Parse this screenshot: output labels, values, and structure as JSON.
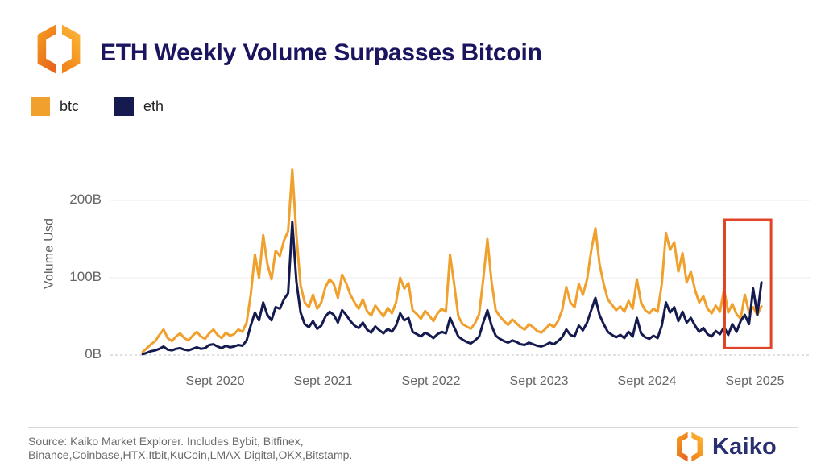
{
  "header": {
    "title": "ETH Weekly Volume Surpasses Bitcoin"
  },
  "legend": [
    {
      "label": "btc",
      "color": "#F0A02D"
    },
    {
      "label": "eth",
      "color": "#151B4F"
    }
  ],
  "colors": {
    "title": "#1B1560",
    "btc_line": "#F0A02D",
    "eth_line": "#151B4F",
    "grid_solid": "#ececec",
    "grid_dashed": "#c2c2c2",
    "highlight_box": "#E04327",
    "brand_navy": "#283070"
  },
  "chart_data": {
    "type": "line",
    "title": "ETH Weekly Volume Surpasses Bitcoin",
    "xlabel": "",
    "ylabel": "Volume Usd",
    "ylim": [
      0,
      258
    ],
    "grid": "horizontal-only",
    "legend_position": "top-left",
    "y_ticks": [
      {
        "label": "0B",
        "v": 0
      },
      {
        "label": "100B",
        "v": 100
      },
      {
        "label": "200B",
        "v": 200
      }
    ],
    "x_ticks": [
      {
        "label": "Sept 2020",
        "t": 2020.67
      },
      {
        "label": "Sept 2021",
        "t": 2021.67
      },
      {
        "label": "Sept 2022",
        "t": 2022.67
      },
      {
        "label": "Sept 2023",
        "t": 2023.67
      },
      {
        "label": "Sept 2024",
        "t": 2024.67
      },
      {
        "label": "Sept 2025",
        "t": 2025.67
      }
    ],
    "x_unit": "decimal-year, weekly volume in billions USD",
    "x_start": 2020.0,
    "x_step": 0.03846,
    "series": [
      {
        "name": "btc",
        "color": "#F0A02D",
        "values": [
          4,
          9,
          14,
          18,
          26,
          33,
          22,
          18,
          24,
          28,
          22,
          19,
          25,
          30,
          24,
          21,
          28,
          33,
          26,
          22,
          29,
          25,
          27,
          33,
          30,
          42,
          78,
          130,
          100,
          155,
          118,
          98,
          135,
          128,
          148,
          160,
          240,
          155,
          90,
          68,
          62,
          78,
          60,
          68,
          88,
          98,
          92,
          74,
          104,
          93,
          78,
          68,
          60,
          72,
          57,
          51,
          64,
          57,
          50,
          61,
          54,
          68,
          100,
          86,
          93,
          58,
          53,
          47,
          57,
          51,
          44,
          54,
          60,
          56,
          130,
          92,
          50,
          40,
          37,
          34,
          41,
          53,
          98,
          150,
          95,
          58,
          50,
          44,
          39,
          46,
          41,
          36,
          33,
          40,
          36,
          31,
          29,
          34,
          40,
          36,
          44,
          58,
          88,
          68,
          62,
          92,
          78,
          98,
          135,
          164,
          118,
          92,
          72,
          65,
          58,
          63,
          56,
          70,
          60,
          98,
          68,
          58,
          54,
          60,
          56,
          92,
          158,
          136,
          146,
          108,
          132,
          94,
          108,
          84,
          68,
          76,
          60,
          54,
          64,
          56,
          85,
          55,
          66,
          53,
          47,
          78,
          55,
          62,
          52,
          63
        ]
      },
      {
        "name": "eth",
        "color": "#151B4F",
        "values": [
          1,
          3,
          5,
          6,
          8,
          11,
          7,
          6,
          8,
          9,
          7,
          6,
          8,
          10,
          8,
          9,
          13,
          14,
          11,
          9,
          12,
          10,
          11,
          13,
          12,
          19,
          38,
          55,
          45,
          68,
          52,
          45,
          62,
          60,
          72,
          80,
          172,
          95,
          55,
          40,
          36,
          44,
          34,
          38,
          50,
          56,
          52,
          42,
          58,
          52,
          44,
          38,
          35,
          42,
          33,
          29,
          37,
          32,
          28,
          34,
          30,
          38,
          54,
          45,
          48,
          30,
          27,
          24,
          29,
          26,
          22,
          27,
          30,
          28,
          48,
          36,
          24,
          20,
          17,
          15,
          19,
          24,
          42,
          58,
          38,
          25,
          21,
          18,
          16,
          19,
          17,
          14,
          13,
          16,
          14,
          12,
          11,
          13,
          16,
          14,
          18,
          23,
          33,
          26,
          24,
          38,
          32,
          42,
          58,
          74,
          52,
          40,
          30,
          26,
          23,
          26,
          22,
          30,
          24,
          48,
          28,
          23,
          21,
          25,
          22,
          38,
          68,
          55,
          62,
          44,
          56,
          42,
          48,
          38,
          30,
          35,
          27,
          24,
          31,
          27,
          36,
          26,
          40,
          30,
          44,
          52,
          40,
          86,
          52,
          94
        ]
      }
    ],
    "annotation_box": {
      "t_start": 2025.39,
      "t_end": 2025.82,
      "v_top": 175,
      "v_bottom": 9,
      "color": "#E04327",
      "meaning": "highlights period where eth weekly volume surpasses btc"
    }
  },
  "footer": {
    "source_line1": "Source: Kaiko Market Explorer. Includes Bybit, Bitfinex,",
    "source_line2": "Binance,Coinbase,HTX,Itbit,KuCoin,LMAX Digital,OKX,Bitstamp.",
    "brand": "Kaiko"
  }
}
